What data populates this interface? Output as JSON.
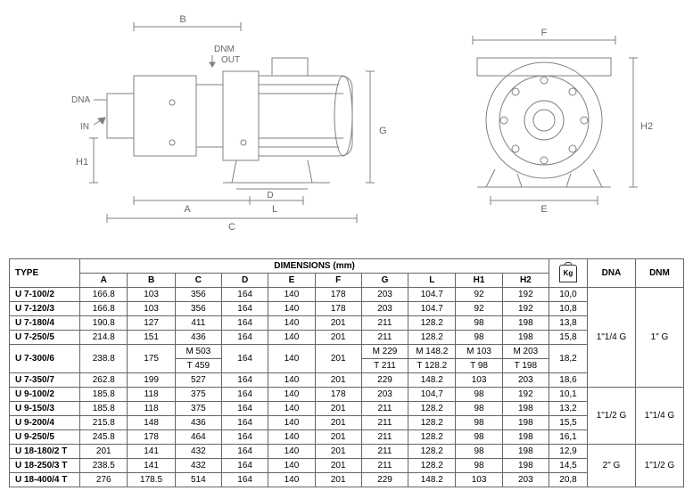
{
  "diagram": {
    "labels": [
      "A",
      "B",
      "C",
      "D",
      "DNM",
      "DNA",
      "OUT",
      "IN",
      "H1",
      "L",
      "G",
      "F",
      "E",
      "H2"
    ],
    "stroke": "#808080",
    "fill": "#ffffff"
  },
  "table": {
    "header": {
      "type": "TYPE",
      "dimensions": "DIMENSIONS (mm)",
      "cols": [
        "A",
        "B",
        "C",
        "D",
        "E",
        "F",
        "G",
        "L",
        "H1",
        "H2"
      ],
      "dna": "DNA",
      "dnm": "DNM",
      "kg_label": "Kg"
    },
    "rows": [
      {
        "type": "U 7-100/2",
        "A": "166.8",
        "B": "103",
        "C": "356",
        "D": "164",
        "E": "140",
        "F": "178",
        "G": "203",
        "L": "104.7",
        "H1": "92",
        "H2": "192",
        "kg": "10,0"
      },
      {
        "type": "U 7-120/3",
        "A": "166.8",
        "B": "103",
        "C": "356",
        "D": "164",
        "E": "140",
        "F": "178",
        "G": "203",
        "L": "104.7",
        "H1": "92",
        "H2": "192",
        "kg": "10,8"
      },
      {
        "type": "U 7-180/4",
        "A": "190.8",
        "B": "127",
        "C": "411",
        "D": "164",
        "E": "140",
        "F": "201",
        "G": "211",
        "L": "128.2",
        "H1": "98",
        "H2": "198",
        "kg": "13,8"
      },
      {
        "type": "U 7-250/5",
        "A": "214.8",
        "B": "151",
        "C": "436",
        "D": "164",
        "E": "140",
        "F": "201",
        "G": "211",
        "L": "128.2",
        "H1": "98",
        "H2": "198",
        "kg": "15,8"
      },
      {
        "type": "U 7-300/6",
        "A": "238.8",
        "B": "175",
        "C": [
          "M 503",
          "T 459"
        ],
        "D": "164",
        "E": "140",
        "F": "201",
        "G": [
          "M 229",
          "T 211"
        ],
        "L": [
          "M 148.2",
          "T 128.2"
        ],
        "H1": [
          "M 103",
          "T 98"
        ],
        "H2": [
          "M 203",
          "T 198"
        ],
        "kg": "18,2"
      },
      {
        "type": "U 7-350/7",
        "A": "262.8",
        "B": "199",
        "C": "527",
        "D": "164",
        "E": "140",
        "F": "201",
        "G": "229",
        "L": "148.2",
        "H1": "103",
        "H2": "203",
        "kg": "18,6"
      },
      {
        "type": "U 9-100/2",
        "A": "185.8",
        "B": "118",
        "C": "375",
        "D": "164",
        "E": "140",
        "F": "178",
        "G": "203",
        "L": "104,7",
        "H1": "98",
        "H2": "192",
        "kg": "10,1"
      },
      {
        "type": "U 9-150/3",
        "A": "185.8",
        "B": "118",
        "C": "375",
        "D": "164",
        "E": "140",
        "F": "201",
        "G": "211",
        "L": "128.2",
        "H1": "98",
        "H2": "198",
        "kg": "13,2"
      },
      {
        "type": "U 9-200/4",
        "A": "215.8",
        "B": "148",
        "C": "436",
        "D": "164",
        "E": "140",
        "F": "201",
        "G": "211",
        "L": "128.2",
        "H1": "98",
        "H2": "198",
        "kg": "15,5"
      },
      {
        "type": "U 9-250/5",
        "A": "245.8",
        "B": "178",
        "C": "464",
        "D": "164",
        "E": "140",
        "F": "201",
        "G": "211",
        "L": "128.2",
        "H1": "98",
        "H2": "198",
        "kg": "16,1"
      },
      {
        "type": "U 18-180/2 T",
        "A": "201",
        "B": "141",
        "C": "432",
        "D": "164",
        "E": "140",
        "F": "201",
        "G": "211",
        "L": "128.2",
        "H1": "98",
        "H2": "198",
        "kg": "12,9"
      },
      {
        "type": "U 18-250/3 T",
        "A": "238.5",
        "B": "141",
        "C": "432",
        "D": "164",
        "E": "140",
        "F": "201",
        "G": "211",
        "L": "128.2",
        "H1": "98",
        "H2": "198",
        "kg": "14,5"
      },
      {
        "type": "U 18-400/4 T",
        "A": "276",
        "B": "178.5",
        "C": "514",
        "D": "164",
        "E": "140",
        "F": "201",
        "G": "229",
        "L": "148.2",
        "H1": "103",
        "H2": "203",
        "kg": "20,8"
      }
    ],
    "dna_groups": [
      {
        "span": 6,
        "value": "1\"1/4 G"
      },
      {
        "span": 4,
        "value": "1\"1/2 G"
      },
      {
        "span": 3,
        "value": "2\" G"
      }
    ],
    "dnm_groups": [
      {
        "span": 6,
        "value": "1\" G"
      },
      {
        "span": 4,
        "value": "1\"1/4 G"
      },
      {
        "span": 3,
        "value": "1\"1/2 G"
      }
    ]
  }
}
